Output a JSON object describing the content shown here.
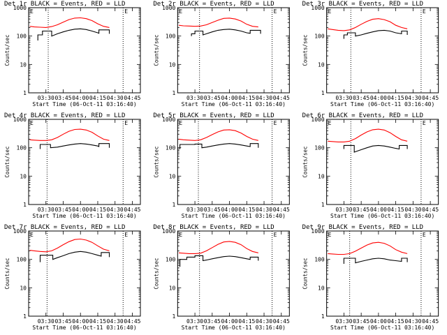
{
  "chart_data": [
    {
      "type": "line",
      "title": "Det 1r BLACK = Events, RED = LLD",
      "xlabel": "Start Time (06-Oct-11 03:16:40)",
      "ylabel": "Counts/sec",
      "y_scale": "log",
      "ylim": [
        1,
        1000
      ],
      "xlim": [
        "03:15",
        "04:52"
      ],
      "x_ticks": [
        "03:30",
        "03:45",
        "04:00",
        "04:15",
        "04:30",
        "04:45"
      ],
      "y_ticks": [
        "1",
        "10",
        "100",
        "1000"
      ],
      "vlines": [
        "03:32",
        "04:37"
      ],
      "annotation": "E",
      "series": [
        {
          "color": "#ff0000",
          "x": [
            "03:16",
            "03:20",
            "03:25",
            "03:30",
            "03:35",
            "03:40",
            "03:45",
            "03:50",
            "03:55",
            "04:00",
            "04:05",
            "04:10",
            "04:15",
            "04:20",
            "04:25"
          ],
          "values": [
            220,
            210,
            205,
            200,
            215,
            250,
            310,
            380,
            430,
            440,
            410,
            350,
            270,
            220,
            200
          ]
        },
        {
          "color": "#000000",
          "x": [
            "03:23",
            "03:23",
            "03:27",
            "03:27",
            "03:35",
            "03:35",
            "03:40",
            "03:45",
            "03:50",
            "03:55",
            "04:00",
            "04:05",
            "04:10",
            "04:15",
            "04:16",
            "04:16",
            "04:25",
            "04:25"
          ],
          "values": [
            70,
            110,
            110,
            150,
            150,
            100,
            120,
            140,
            160,
            175,
            180,
            170,
            150,
            130,
            125,
            165,
            165,
            120
          ]
        }
      ]
    },
    {
      "type": "line",
      "title": "Det 2r BLACK = Events, RED = LLD",
      "xlabel": "Start Time (06-Oct-11 03:16:40)",
      "ylabel": "Counts/sec",
      "y_scale": "log",
      "ylim": [
        1,
        1000
      ],
      "xlim": [
        "03:15",
        "04:52"
      ],
      "x_ticks": [
        "03:30",
        "03:45",
        "04:00",
        "04:15",
        "04:30",
        "04:45"
      ],
      "y_ticks": [
        "1",
        "10",
        "100",
        "1000"
      ],
      "vlines": [
        "03:34",
        "04:37"
      ],
      "annotation": "E",
      "series": [
        {
          "color": "#ff0000",
          "x": [
            "03:16",
            "03:20",
            "03:25",
            "03:30",
            "03:35",
            "03:40",
            "03:45",
            "03:50",
            "03:55",
            "04:00",
            "04:05",
            "04:10",
            "04:15",
            "04:20",
            "04:25"
          ],
          "values": [
            240,
            230,
            225,
            220,
            225,
            250,
            300,
            360,
            420,
            430,
            400,
            340,
            260,
            220,
            210
          ]
        },
        {
          "color": "#000000",
          "x": [
            "03:27",
            "03:27",
            "03:30",
            "03:30",
            "03:37",
            "03:37",
            "03:40",
            "03:45",
            "03:50",
            "03:55",
            "04:00",
            "04:05",
            "04:10",
            "04:15",
            "04:18",
            "04:18",
            "04:27",
            "04:27"
          ],
          "values": [
            100,
            120,
            120,
            150,
            150,
            110,
            120,
            140,
            160,
            170,
            175,
            165,
            150,
            130,
            125,
            160,
            160,
            120
          ]
        }
      ]
    },
    {
      "type": "line",
      "title": "Det 3r BLACK = Events, RED = LLD",
      "xlabel": "Start Time (06-Oct-11 03:16:40)",
      "ylabel": "Counts/sec",
      "y_scale": "log",
      "ylim": [
        1,
        1000
      ],
      "xlim": [
        "03:15",
        "04:52"
      ],
      "x_ticks": [
        "03:30",
        "03:45",
        "04:00",
        "04:15",
        "04:30",
        "04:45"
      ],
      "y_ticks": [
        "1",
        "10",
        "100",
        "1000"
      ],
      "vlines": [
        "03:36",
        "04:37"
      ],
      "annotation": "E",
      "series": [
        {
          "color": "#ff0000",
          "x": [
            "03:16",
            "03:20",
            "03:25",
            "03:30",
            "03:35",
            "03:40",
            "03:45",
            "03:50",
            "03:55",
            "04:00",
            "04:05",
            "04:10",
            "04:15",
            "04:20",
            "04:25"
          ],
          "values": [
            180,
            170,
            160,
            155,
            165,
            200,
            260,
            330,
            390,
            410,
            380,
            320,
            240,
            200,
            180
          ]
        },
        {
          "color": "#000000",
          "x": [
            "03:30",
            "03:30",
            "03:33",
            "03:33",
            "03:40",
            "03:40",
            "03:45",
            "03:50",
            "03:55",
            "04:00",
            "04:05",
            "04:10",
            "04:15",
            "04:20",
            "04:20",
            "04:25",
            "04:25"
          ],
          "values": [
            80,
            110,
            110,
            130,
            130,
            100,
            110,
            125,
            140,
            155,
            160,
            150,
            130,
            120,
            150,
            150,
            110
          ]
        }
      ]
    },
    {
      "type": "line",
      "title": "Det 4r BLACK = Events, RED = LLD",
      "xlabel": "Start Time (06-Oct-11 03:16:40)",
      "ylabel": "Counts/sec",
      "y_scale": "log",
      "ylim": [
        1,
        1000
      ],
      "xlim": [
        "03:15",
        "04:52"
      ],
      "x_ticks": [
        "03:30",
        "03:45",
        "04:00",
        "04:15",
        "04:30",
        "04:45"
      ],
      "y_ticks": [
        "1",
        "10",
        "100",
        "1000"
      ],
      "vlines": [
        "03:31",
        "04:37"
      ],
      "annotation": "E",
      "series": [
        {
          "color": "#ff0000",
          "x": [
            "03:16",
            "03:20",
            "03:25",
            "03:30",
            "03:35",
            "03:40",
            "03:45",
            "03:50",
            "03:55",
            "04:00",
            "04:05",
            "04:10",
            "04:15",
            "04:20",
            "04:25"
          ],
          "values": [
            190,
            185,
            180,
            180,
            190,
            230,
            300,
            380,
            440,
            450,
            420,
            350,
            260,
            200,
            180
          ]
        },
        {
          "color": "#000000",
          "x": [
            "03:25",
            "03:25",
            "03:34",
            "03:34",
            "03:40",
            "03:45",
            "03:50",
            "03:55",
            "04:00",
            "04:05",
            "04:10",
            "04:15",
            "04:16",
            "04:16",
            "04:25",
            "04:25"
          ],
          "values": [
            90,
            130,
            130,
            100,
            105,
            115,
            125,
            135,
            140,
            135,
            125,
            115,
            110,
            140,
            140,
            100
          ]
        }
      ]
    },
    {
      "type": "line",
      "title": "Det 5r BLACK = Events, RED = LLD",
      "xlabel": "Start Time (06-Oct-11 03:16:40)",
      "ylabel": "Counts/sec",
      "y_scale": "log",
      "ylim": [
        1,
        1000
      ],
      "xlim": [
        "03:15",
        "04:52"
      ],
      "x_ticks": [
        "03:30",
        "03:45",
        "04:00",
        "04:15",
        "04:30",
        "04:45"
      ],
      "y_ticks": [
        "1",
        "10",
        "100",
        "1000"
      ],
      "vlines": [
        "03:33",
        "04:37"
      ],
      "annotation": "E",
      "series": [
        {
          "color": "#ff0000",
          "x": [
            "03:16",
            "03:20",
            "03:25",
            "03:30",
            "03:35",
            "03:40",
            "03:45",
            "03:50",
            "03:55",
            "04:00",
            "04:05",
            "04:10",
            "04:15",
            "04:20",
            "04:25"
          ],
          "values": [
            200,
            190,
            185,
            180,
            190,
            230,
            290,
            360,
            420,
            430,
            400,
            330,
            250,
            200,
            180
          ]
        },
        {
          "color": "#000000",
          "x": [
            "03:17",
            "03:17",
            "03:30",
            "03:30",
            "03:36",
            "03:36",
            "03:40",
            "03:45",
            "03:50",
            "03:55",
            "04:00",
            "04:05",
            "04:10",
            "04:15",
            "04:18",
            "04:18",
            "04:25",
            "04:25"
          ],
          "values": [
            90,
            130,
            130,
            135,
            135,
            100,
            105,
            115,
            125,
            135,
            140,
            135,
            125,
            115,
            110,
            140,
            140,
            100
          ]
        }
      ]
    },
    {
      "type": "line",
      "title": "Det 6r BLACK = Events, RED = LLD",
      "xlabel": "Start Time (06-Oct-11 03:16:40)",
      "ylabel": "Counts/sec",
      "y_scale": "log",
      "ylim": [
        1,
        1000
      ],
      "xlim": [
        "03:15",
        "04:52"
      ],
      "x_ticks": [
        "03:30",
        "03:45",
        "04:00",
        "04:15",
        "04:30",
        "04:45"
      ],
      "y_ticks": [
        "1",
        "10",
        "100",
        "1000"
      ],
      "vlines": [
        "03:36",
        "04:37"
      ],
      "annotation": "E",
      "series": [
        {
          "color": "#ff0000",
          "x": [
            "03:16",
            "03:20",
            "03:25",
            "03:30",
            "03:35",
            "03:40",
            "03:45",
            "03:50",
            "03:55",
            "04:00",
            "04:05",
            "04:10",
            "04:15",
            "04:20",
            "04:25"
          ],
          "values": [
            170,
            165,
            160,
            160,
            170,
            210,
            280,
            360,
            430,
            450,
            420,
            340,
            250,
            190,
            170
          ]
        },
        {
          "color": "#000000",
          "x": [
            "03:30",
            "03:30",
            "03:39",
            "03:39",
            "03:45",
            "03:50",
            "03:55",
            "04:00",
            "04:05",
            "04:10",
            "04:15",
            "04:18",
            "04:18",
            "04:25",
            "04:25"
          ],
          "values": [
            90,
            120,
            120,
            70,
            85,
            100,
            115,
            120,
            115,
            105,
            95,
            90,
            120,
            120,
            90
          ]
        }
      ]
    },
    {
      "type": "line",
      "title": "Det 7r BLACK = Events, RED = LLD",
      "xlabel": "Start Time (06-Oct-11 03:16:40)",
      "ylabel": "Counts/sec",
      "y_scale": "log",
      "ylim": [
        1,
        1000
      ],
      "xlim": [
        "03:15",
        "04:52"
      ],
      "x_ticks": [
        "03:30",
        "03:45",
        "04:00",
        "04:15",
        "04:30",
        "04:45"
      ],
      "y_ticks": [
        "1",
        "10",
        "100",
        "1000"
      ],
      "vlines": [
        "03:31",
        "04:37"
      ],
      "annotation": "E",
      "series": [
        {
          "color": "#ff0000",
          "x": [
            "03:16",
            "03:20",
            "03:25",
            "03:30",
            "03:35",
            "03:40",
            "03:45",
            "03:50",
            "03:55",
            "04:00",
            "04:05",
            "04:10",
            "04:15",
            "04:20",
            "04:25"
          ],
          "values": [
            210,
            200,
            190,
            185,
            200,
            250,
            330,
            420,
            500,
            520,
            480,
            400,
            300,
            230,
            200
          ]
        },
        {
          "color": "#000000",
          "x": [
            "03:25",
            "03:25",
            "03:36",
            "03:36",
            "03:40",
            "03:45",
            "03:50",
            "03:55",
            "04:00",
            "04:05",
            "04:10",
            "04:15",
            "04:18",
            "04:18",
            "04:25",
            "04:25"
          ],
          "values": [
            80,
            140,
            140,
            100,
            115,
            135,
            160,
            180,
            190,
            180,
            160,
            140,
            130,
            175,
            175,
            120
          ]
        }
      ]
    },
    {
      "type": "line",
      "title": "Det 8r BLACK = Events, RED = LLD",
      "xlabel": "Start Time (06-Oct-11 03:16:40)",
      "ylabel": "Counts/sec",
      "y_scale": "log",
      "ylim": [
        1,
        1000
      ],
      "xlim": [
        "03:15",
        "04:52"
      ],
      "x_ticks": [
        "03:30",
        "03:45",
        "04:00",
        "04:15",
        "04:30",
        "04:45"
      ],
      "y_ticks": [
        "1",
        "10",
        "100",
        "1000"
      ],
      "vlines": [
        "03:34",
        "04:37"
      ],
      "annotation": "E",
      "series": [
        {
          "color": "#ff0000",
          "x": [
            "03:16",
            "03:20",
            "03:25",
            "03:30",
            "03:35",
            "03:40",
            "03:45",
            "03:50",
            "03:55",
            "04:00",
            "04:05",
            "04:10",
            "04:15",
            "04:20",
            "04:25"
          ],
          "values": [
            170,
            165,
            160,
            160,
            165,
            200,
            260,
            340,
            410,
            430,
            400,
            330,
            240,
            190,
            170
          ]
        },
        {
          "color": "#000000",
          "x": [
            "03:17",
            "03:17",
            "03:23",
            "03:23",
            "03:30",
            "03:30",
            "03:37",
            "03:37",
            "03:40",
            "03:45",
            "03:50",
            "03:55",
            "04:00",
            "04:05",
            "04:10",
            "04:15",
            "04:18",
            "04:18",
            "04:25",
            "04:25"
          ],
          "values": [
            55,
            100,
            100,
            120,
            120,
            135,
            135,
            90,
            95,
            105,
            115,
            125,
            130,
            125,
            115,
            105,
            100,
            120,
            120,
            90
          ]
        }
      ]
    },
    {
      "type": "line",
      "title": "Det 9r BLACK = Events, RED = LLD",
      "xlabel": "Start Time (06-Oct-11 03:16:40)",
      "ylabel": "Counts/sec",
      "y_scale": "log",
      "ylim": [
        1,
        1000
      ],
      "xlim": [
        "03:15",
        "04:52"
      ],
      "x_ticks": [
        "03:30",
        "03:45",
        "04:00",
        "04:15",
        "04:30",
        "04:45"
      ],
      "y_ticks": [
        "1",
        "10",
        "100",
        "1000"
      ],
      "vlines": [
        "03:35",
        "04:37"
      ],
      "annotation": "E",
      "series": [
        {
          "color": "#ff0000",
          "x": [
            "03:16",
            "03:20",
            "03:25",
            "03:30",
            "03:35",
            "03:40",
            "03:45",
            "03:50",
            "03:55",
            "04:00",
            "04:05",
            "04:10",
            "04:15",
            "04:20",
            "04:25"
          ],
          "values": [
            160,
            155,
            150,
            150,
            160,
            195,
            250,
            320,
            380,
            400,
            370,
            300,
            220,
            180,
            160
          ]
        },
        {
          "color": "#000000",
          "x": [
            "03:30",
            "03:30",
            "03:40",
            "03:40",
            "03:45",
            "03:50",
            "03:55",
            "04:00",
            "04:05",
            "04:10",
            "04:15",
            "04:20",
            "04:20",
            "04:25",
            "04:25"
          ],
          "values": [
            70,
            110,
            110,
            75,
            85,
            95,
            105,
            110,
            105,
            95,
            90,
            85,
            110,
            110,
            80
          ]
        }
      ]
    }
  ]
}
